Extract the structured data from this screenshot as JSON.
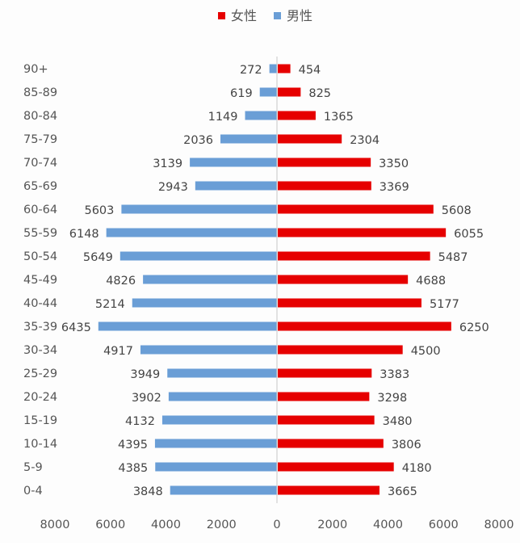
{
  "chart_data": {
    "type": "bar",
    "orientation": "horizontal",
    "title": "",
    "categories": [
      "90+",
      "85-89",
      "80-84",
      "75-79",
      "70-74",
      "65-69",
      "60-64",
      "55-59",
      "50-54",
      "45-49",
      "40-44",
      "35-39",
      "30-34",
      "25-29",
      "20-24",
      "15-19",
      "10-14",
      "5-9",
      "0-4"
    ],
    "series": [
      {
        "name": "女性",
        "color": "#e60000",
        "side": "right",
        "values": [
          454,
          825,
          1365,
          2304,
          3350,
          3369,
          5608,
          6055,
          5487,
          4688,
          5177,
          6250,
          4500,
          3383,
          3298,
          3480,
          3806,
          4180,
          3665
        ]
      },
      {
        "name": "男性",
        "color": "#6a9ed6",
        "side": "left",
        "values": [
          272,
          619,
          1149,
          2036,
          3139,
          2943,
          5603,
          6148,
          5649,
          4826,
          5214,
          6435,
          4917,
          3949,
          3902,
          4132,
          4395,
          4385,
          3848
        ]
      }
    ],
    "legend": [
      "女性",
      "男性"
    ],
    "legend_position": "top",
    "xaxis": {
      "ticks": [
        "8000",
        "6000",
        "4000",
        "2000",
        "0",
        "2000",
        "4000",
        "6000",
        "8000"
      ],
      "range": [
        -8000,
        8000
      ]
    },
    "xlabel": "",
    "ylabel": ""
  }
}
